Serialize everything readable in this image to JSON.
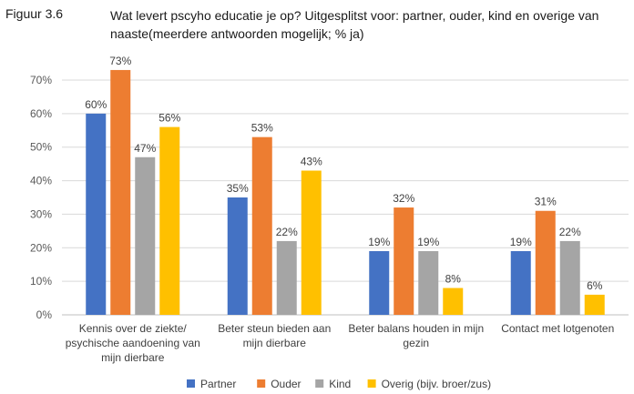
{
  "figure_label": "Figuur 3.6",
  "title": "Wat levert pscyho educatie je op? Uitgesplitst voor: partner, ouder, kind en overige van naaste(meerdere antwoorden mogelijk; % ja)",
  "chart_data": {
    "type": "bar",
    "title": "Wat levert pscyho educatie je op? Uitgesplitst voor: partner, ouder, kind en overige van naaste(meerdere antwoorden mogelijk; % ja)",
    "categories": [
      [
        "Kennis over de ziekte/",
        "psychische aandoening van",
        "mijn dierbare"
      ],
      [
        "Beter steun bieden aan",
        "mijn dierbare"
      ],
      [
        "Beter balans houden in mijn",
        "gezin"
      ],
      [
        "Contact met lotgenoten"
      ]
    ],
    "series": [
      {
        "name": "Partner",
        "color": "#4472C4",
        "values": [
          60,
          35,
          19,
          19
        ],
        "labels": [
          "60%",
          "35%",
          "19%",
          "19%"
        ]
      },
      {
        "name": "Ouder",
        "color": "#ED7D31",
        "values": [
          73,
          53,
          32,
          31
        ],
        "labels": [
          "73%",
          "53%",
          "32%",
          "31%"
        ]
      },
      {
        "name": "Kind",
        "color": "#A5A5A5",
        "values": [
          47,
          22,
          19,
          22
        ],
        "labels": [
          "47%",
          "22%",
          "19%",
          "22%"
        ]
      },
      {
        "name": "Overig (bijv. broer/zus)",
        "color": "#FFC000",
        "values": [
          56,
          43,
          8,
          6
        ],
        "labels": [
          "56%",
          "43%",
          "8%",
          "6%"
        ]
      }
    ],
    "ylim": [
      0,
      70
    ],
    "yticks": [
      "0%",
      "10%",
      "20%",
      "30%",
      "40%",
      "50%",
      "60%",
      "70%"
    ],
    "gridlines": true,
    "legend_position": "bottom"
  }
}
